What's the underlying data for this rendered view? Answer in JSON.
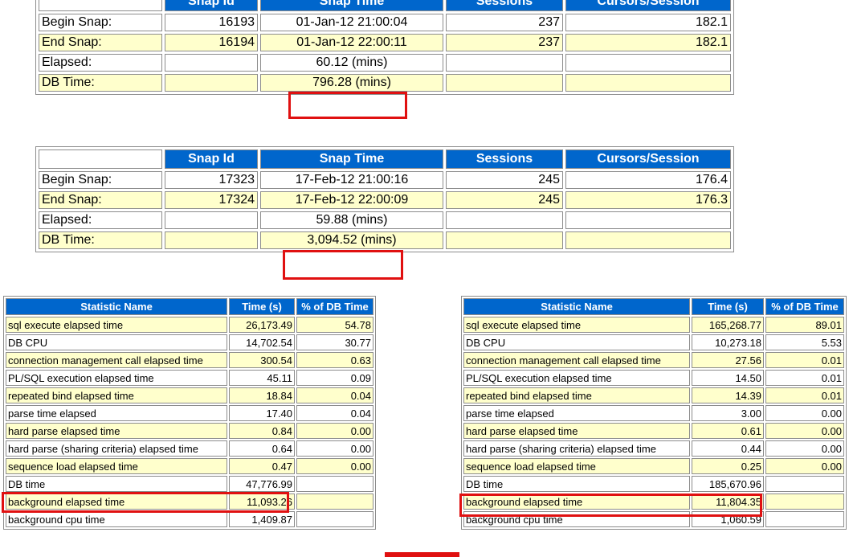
{
  "snap1": {
    "headers": [
      "",
      "Snap Id",
      "Snap Time",
      "Sessions",
      "Cursors/Session"
    ],
    "rows": [
      [
        "Begin Snap:",
        "16193",
        "01-Jan-12 21:00:04",
        "237",
        "182.1"
      ],
      [
        "End Snap:",
        "16194",
        "01-Jan-12 22:00:11",
        "237",
        "182.1"
      ],
      [
        "Elapsed:",
        "",
        "60.12 (mins)",
        "",
        ""
      ],
      [
        "DB Time:",
        "",
        "796.28 (mins)",
        "",
        ""
      ]
    ]
  },
  "snap2": {
    "headers": [
      "",
      "Snap Id",
      "Snap Time",
      "Sessions",
      "Cursors/Session"
    ],
    "rows": [
      [
        "Begin Snap:",
        "17323",
        "17-Feb-12 21:00:16",
        "245",
        "176.4"
      ],
      [
        "End Snap:",
        "17324",
        "17-Feb-12 22:00:09",
        "245",
        "176.3"
      ],
      [
        "Elapsed:",
        "",
        "59.88 (mins)",
        "",
        ""
      ],
      [
        "DB Time:",
        "",
        "3,094.52 (mins)",
        "",
        ""
      ]
    ]
  },
  "stat1": {
    "headers": [
      "Statistic Name",
      "Time (s)",
      "% of DB Time"
    ],
    "rows": [
      [
        "sql execute elapsed time",
        "26,173.49",
        "54.78"
      ],
      [
        "DB CPU",
        "14,702.54",
        "30.77"
      ],
      [
        "connection management call elapsed time",
        "300.54",
        "0.63"
      ],
      [
        "PL/SQL execution elapsed time",
        "45.11",
        "0.09"
      ],
      [
        "repeated bind elapsed time",
        "18.84",
        "0.04"
      ],
      [
        "parse time elapsed",
        "17.40",
        "0.04"
      ],
      [
        "hard parse elapsed time",
        "0.84",
        "0.00"
      ],
      [
        "hard parse (sharing criteria) elapsed time",
        "0.64",
        "0.00"
      ],
      [
        "sequence load elapsed time",
        "0.47",
        "0.00"
      ],
      [
        "DB time",
        "47,776.99",
        ""
      ],
      [
        "background elapsed time",
        "11,093.26",
        ""
      ],
      [
        "background cpu time",
        "1,409.87",
        ""
      ]
    ]
  },
  "stat2": {
    "headers": [
      "Statistic Name",
      "Time (s)",
      "% of DB Time"
    ],
    "rows": [
      [
        "sql execute elapsed time",
        "165,268.77",
        "89.01"
      ],
      [
        "DB CPU",
        "10,273.18",
        "5.53"
      ],
      [
        "connection management call elapsed time",
        "27.56",
        "0.01"
      ],
      [
        "PL/SQL execution elapsed time",
        "14.50",
        "0.01"
      ],
      [
        "repeated bind elapsed time",
        "14.39",
        "0.01"
      ],
      [
        "parse time elapsed",
        "3.00",
        "0.00"
      ],
      [
        "hard parse elapsed time",
        "0.61",
        "0.00"
      ],
      [
        "hard parse (sharing criteria) elapsed time",
        "0.44",
        "0.00"
      ],
      [
        "sequence load elapsed time",
        "0.25",
        "0.00"
      ],
      [
        "DB time",
        "185,670.96",
        ""
      ],
      [
        "background elapsed time",
        "11,804.35",
        ""
      ],
      [
        "background cpu time",
        "1,060.59",
        ""
      ]
    ]
  }
}
